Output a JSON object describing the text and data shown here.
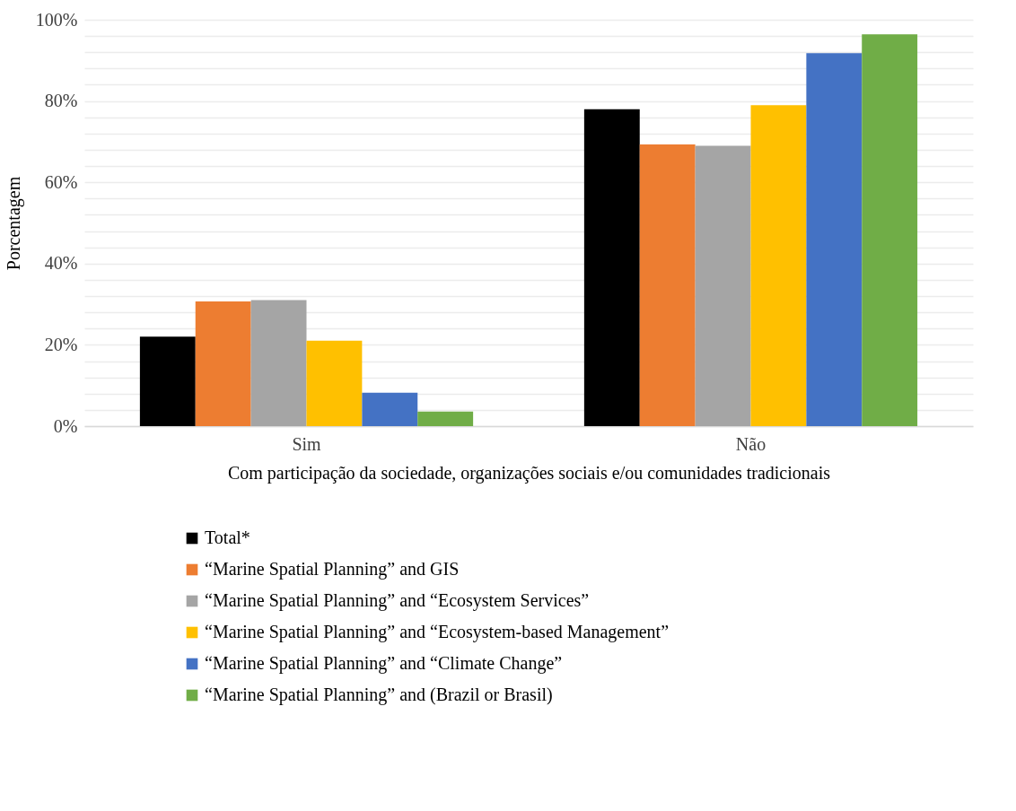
{
  "chart_data": {
    "type": "bar",
    "xlabel": "Com participação da sociedade, organizações sociais e/ou comunidades tradicionais",
    "ylabel": "Porcentagem",
    "categories": [
      "Sim",
      "Não"
    ],
    "series": [
      {
        "name": "Total*",
        "color": "#000000",
        "values": [
          22,
          78
        ]
      },
      {
        "name": "“Marine Spatial Planning” and GIS",
        "color": "#ed7d31",
        "values": [
          30.7,
          69.3
        ]
      },
      {
        "name": "“Marine Spatial Planning” and “Ecosystem Services”",
        "color": "#a5a5a5",
        "values": [
          31,
          69
        ]
      },
      {
        "name": "“Marine Spatial Planning” and “Ecosystem-based Management”",
        "color": "#ffc000",
        "values": [
          21,
          79
        ]
      },
      {
        "name": "“Marine Spatial Planning” and “Climate Change”",
        "color": "#4472c4",
        "values": [
          8.2,
          91.8
        ]
      },
      {
        "name": "“Marine Spatial Planning” and (Brazil or Brasil)",
        "color": "#70ad47",
        "values": [
          3.6,
          96.4
        ]
      }
    ],
    "ylim": [
      0,
      100
    ],
    "yticks": [
      {
        "value": 0,
        "label": "0%"
      },
      {
        "value": 4,
        "label": null
      },
      {
        "value": 8,
        "label": null
      },
      {
        "value": 12,
        "label": null
      },
      {
        "value": 16,
        "label": null
      },
      {
        "value": 20,
        "label": "20%"
      },
      {
        "value": 24,
        "label": null
      },
      {
        "value": 28,
        "label": null
      },
      {
        "value": 32,
        "label": null
      },
      {
        "value": 36,
        "label": null
      },
      {
        "value": 40,
        "label": "40%"
      },
      {
        "value": 44,
        "label": null
      },
      {
        "value": 48,
        "label": null
      },
      {
        "value": 52,
        "label": null
      },
      {
        "value": 56,
        "label": null
      },
      {
        "value": 60,
        "label": "60%"
      },
      {
        "value": 64,
        "label": null
      },
      {
        "value": 68,
        "label": null
      },
      {
        "value": 72,
        "label": null
      },
      {
        "value": 76,
        "label": null
      },
      {
        "value": 80,
        "label": "80%"
      },
      {
        "value": 84,
        "label": null
      },
      {
        "value": 88,
        "label": null
      },
      {
        "value": 92,
        "label": null
      },
      {
        "value": 96,
        "label": null
      },
      {
        "value": 100,
        "label": "100%"
      }
    ],
    "grid": true,
    "legend": "bottom"
  }
}
